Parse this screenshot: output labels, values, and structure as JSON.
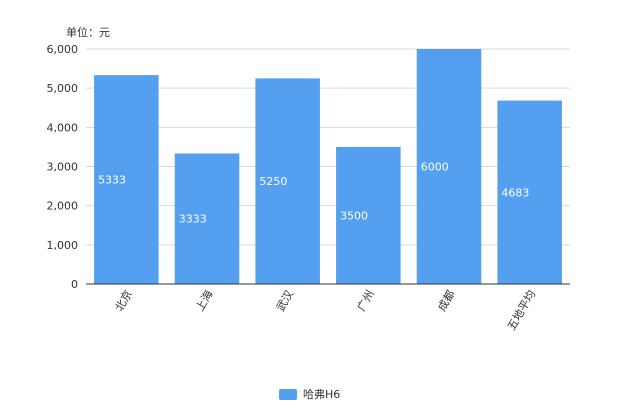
{
  "unit_label": "单位：元",
  "legend": {
    "label": "哈弗H6",
    "color": "#559ff0"
  },
  "colors": {
    "bar": "#559ff0",
    "grid": "#d9d9d9",
    "axis": "#333333",
    "text": "#333333",
    "bar_label": "#ffffff"
  },
  "chart_data": {
    "type": "bar",
    "categories": [
      "北京",
      "上海",
      "武汉",
      "广州",
      "成都",
      "五地平均"
    ],
    "series": [
      {
        "name": "哈弗H6",
        "values": [
          5333,
          3333,
          5250,
          3500,
          6000,
          4683
        ]
      }
    ],
    "y_ticks": [
      "0",
      "1,000",
      "2,000",
      "3,000",
      "4,000",
      "5,000",
      "6,000"
    ],
    "ylim": [
      0,
      6000
    ],
    "ylabel": "单位：元",
    "grid": true,
    "legend_position": "bottom-center",
    "data_labels": true
  }
}
